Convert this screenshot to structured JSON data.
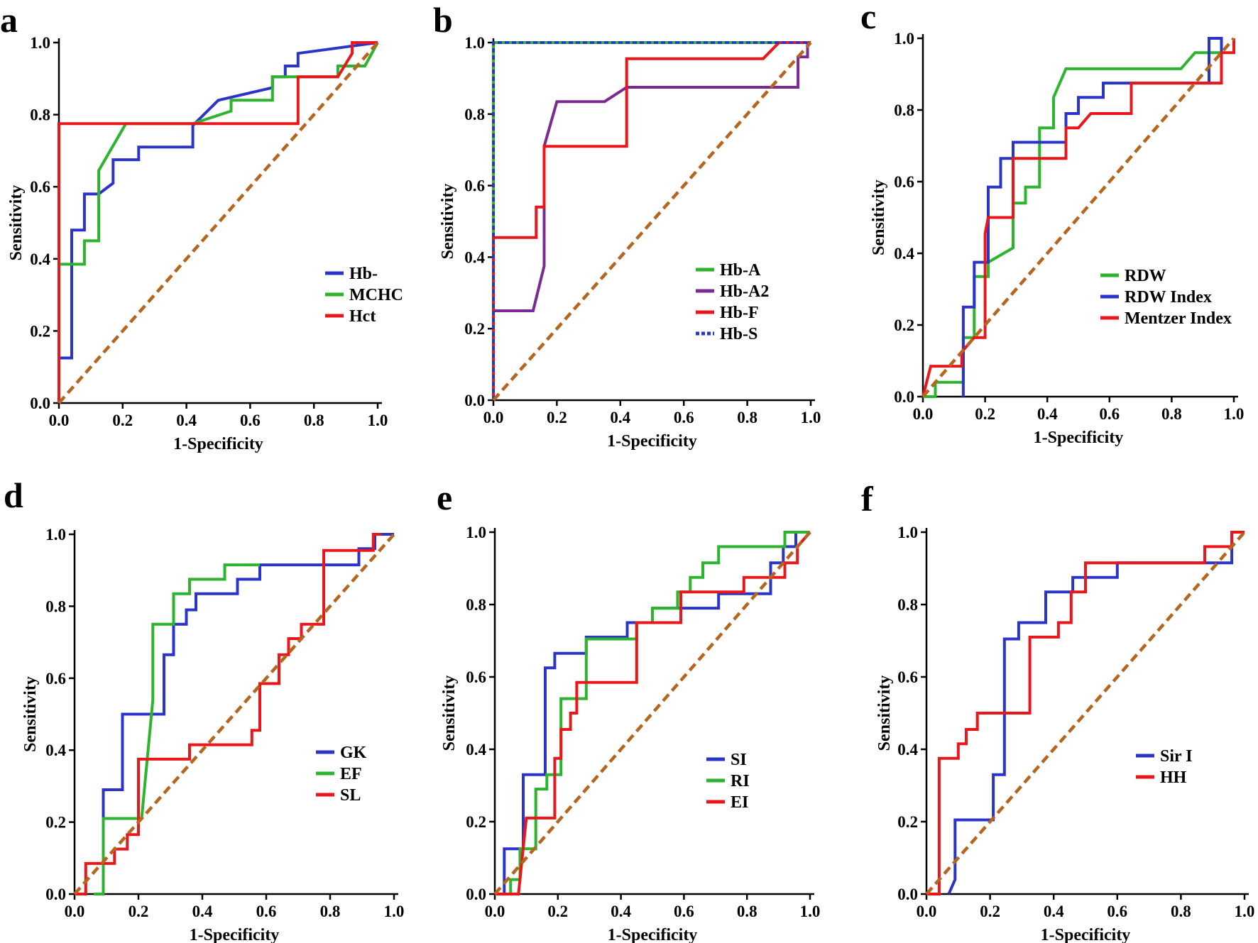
{
  "chart_data": [
    {
      "panel": "a",
      "type": "line",
      "xlabel": "1-Specificity",
      "ylabel": "Sensitivity",
      "xlim": [
        0,
        1
      ],
      "ylim": [
        0,
        1
      ],
      "ticks": [
        "0.0",
        "0.2",
        "0.4",
        "0.6",
        "0.8",
        "1.0"
      ],
      "reference_color": "#b5651d",
      "series": [
        {
          "name": "Hb-",
          "color": "#2b34c8",
          "dashed": false,
          "x": [
            0,
            0,
            0.04,
            0.04,
            0.08,
            0.08,
            0.125,
            0.125,
            0.17,
            0.17,
            0.25,
            0.25,
            0.42,
            0.42,
            0.5,
            0.5,
            0.67,
            0.67,
            0.71,
            0.71,
            0.75,
            0.75,
            1.0
          ],
          "y": [
            0,
            0.125,
            0.125,
            0.48,
            0.48,
            0.58,
            0.58,
            0.58,
            0.61,
            0.675,
            0.675,
            0.71,
            0.71,
            0.77,
            0.84,
            0.84,
            0.875,
            0.905,
            0.905,
            0.935,
            0.935,
            0.97,
            1.0
          ]
        },
        {
          "name": "MCHC",
          "color": "#2db32d",
          "dashed": false,
          "x": [
            0,
            0,
            0.08,
            0.08,
            0.125,
            0.125,
            0.21,
            0.42,
            0.54,
            0.54,
            0.67,
            0.67,
            0.875,
            0.875,
            0.96,
            1.0
          ],
          "y": [
            0,
            0.385,
            0.385,
            0.45,
            0.45,
            0.645,
            0.775,
            0.775,
            0.81,
            0.84,
            0.84,
            0.905,
            0.905,
            0.935,
            0.935,
            1.0
          ]
        },
        {
          "name": "Hct",
          "color": "#e8171c",
          "dashed": false,
          "x": [
            0,
            0,
            0.75,
            0.75,
            0.875,
            0.92,
            0.92,
            1.0
          ],
          "y": [
            0,
            0.775,
            0.775,
            0.905,
            0.905,
            0.97,
            1.0,
            1.0
          ]
        }
      ]
    },
    {
      "panel": "b",
      "type": "line",
      "xlabel": "1-Specificity",
      "ylabel": "Sensitivity",
      "xlim": [
        0,
        1
      ],
      "ylim": [
        0,
        1
      ],
      "ticks": [
        "0.0",
        "0.2",
        "0.4",
        "0.6",
        "0.8",
        "1.0"
      ],
      "reference_color": "#b5651d",
      "series": [
        {
          "name": "Hb-A",
          "color": "#2db32d",
          "dashed": false,
          "x": [
            0,
            0,
            1.0
          ],
          "y": [
            0,
            1.0,
            1.0
          ]
        },
        {
          "name": "Hb-A2",
          "color": "#7b2a91",
          "dashed": false,
          "x": [
            0,
            0,
            0.125,
            0.125,
            0.16,
            0.16,
            0.2,
            0.2,
            0.35,
            0.42,
            0.96,
            0.96,
            0.99,
            0.99
          ],
          "y": [
            0,
            0.25,
            0.25,
            0.25,
            0.375,
            0.71,
            0.835,
            0.835,
            0.835,
            0.875,
            0.875,
            0.96,
            0.96,
            1.0
          ]
        },
        {
          "name": "Hb-F",
          "color": "#e8171c",
          "dashed": false,
          "x": [
            0,
            0,
            0.135,
            0.135,
            0.16,
            0.16,
            0.42,
            0.42,
            0.85,
            0.9,
            0.9,
            1.0
          ],
          "y": [
            0,
            0.455,
            0.455,
            0.54,
            0.54,
            0.71,
            0.71,
            0.955,
            0.955,
            1.0,
            1.0,
            1.0
          ]
        },
        {
          "name": "Hb-S",
          "color": "#2b34c8",
          "dashed": true,
          "x": [
            0,
            0,
            1.0
          ],
          "y": [
            0,
            1.0,
            1.0
          ]
        }
      ]
    },
    {
      "panel": "c",
      "type": "line",
      "xlabel": "1-Specificity",
      "ylabel": "Sensitivity",
      "xlim": [
        0,
        1
      ],
      "ylim": [
        0,
        1
      ],
      "ticks": [
        "0.0",
        "0.2",
        "0.4",
        "0.6",
        "0.8",
        "1.0"
      ],
      "reference_color": "#b5651d",
      "series": [
        {
          "name": "RDW",
          "color": "#2db32d",
          "dashed": false,
          "x": [
            0,
            0.04,
            0.04,
            0.13,
            0.13,
            0.165,
            0.165,
            0.21,
            0.21,
            0.29,
            0.29,
            0.33,
            0.33,
            0.375,
            0.375,
            0.42,
            0.42,
            0.46,
            0.83,
            0.875,
            0.875,
            0.96,
            0.96
          ],
          "y": [
            0,
            0,
            0.04,
            0.04,
            0.165,
            0.165,
            0.335,
            0.335,
            0.375,
            0.415,
            0.54,
            0.54,
            0.585,
            0.585,
            0.75,
            0.75,
            0.835,
            0.915,
            0.915,
            0.96,
            0.96,
            0.96,
            1.0
          ]
        },
        {
          "name": "RDW Index",
          "color": "#2b34c8",
          "dashed": false,
          "x": [
            0.13,
            0.13,
            0.165,
            0.165,
            0.21,
            0.21,
            0.25,
            0.25,
            0.29,
            0.29,
            0.46,
            0.46,
            0.5,
            0.5,
            0.58,
            0.58,
            0.67,
            0.92,
            0.92,
            0.96,
            0.96
          ],
          "y": [
            0,
            0.25,
            0.25,
            0.375,
            0.375,
            0.585,
            0.585,
            0.665,
            0.665,
            0.71,
            0.71,
            0.79,
            0.79,
            0.835,
            0.835,
            0.875,
            0.875,
            0.875,
            1.0,
            1.0,
            0.96
          ]
        },
        {
          "name": "Mentzer Index",
          "color": "#e8171c",
          "dashed": false,
          "x": [
            0,
            0.025,
            0.125,
            0.125,
            0.165,
            0.165,
            0.2,
            0.2,
            0.21,
            0.25,
            0.29,
            0.29,
            0.46,
            0.46,
            0.5,
            0.54,
            0.67,
            0.67,
            0.96,
            0.96,
            1.0,
            1.0
          ],
          "y": [
            0,
            0.085,
            0.085,
            0.125,
            0.165,
            0.165,
            0.165,
            0.455,
            0.5,
            0.5,
            0.5,
            0.665,
            0.665,
            0.75,
            0.75,
            0.79,
            0.79,
            0.875,
            0.875,
            0.96,
            0.96,
            1.0
          ]
        }
      ]
    },
    {
      "panel": "d",
      "type": "line",
      "xlabel": "1-Specificity",
      "ylabel": "Sensitivity",
      "xlim": [
        0,
        1
      ],
      "ylim": [
        0,
        1
      ],
      "ticks": [
        "0.0",
        "0.2",
        "0.4",
        "0.6",
        "0.8",
        "1.0"
      ],
      "reference_color": "#b5651d",
      "series": [
        {
          "name": "GK",
          "color": "#2b34c8",
          "dashed": false,
          "x": [
            0.09,
            0.09,
            0.15,
            0.15,
            0.28,
            0.28,
            0.31,
            0.31,
            0.35,
            0.35,
            0.38,
            0.38,
            0.51,
            0.51,
            0.58,
            0.58,
            0.89,
            0.89,
            0.94,
            0.94,
            1.0
          ],
          "y": [
            0,
            0.29,
            0.29,
            0.5,
            0.5,
            0.665,
            0.665,
            0.75,
            0.75,
            0.79,
            0.79,
            0.835,
            0.835,
            0.875,
            0.875,
            0.915,
            0.915,
            0.96,
            0.96,
            1.0,
            1.0
          ]
        },
        {
          "name": "EF",
          "color": "#2db32d",
          "dashed": false,
          "x": [
            0.06,
            0.09,
            0.09,
            0.21,
            0.21,
            0.245,
            0.245,
            0.31,
            0.31,
            0.36,
            0.36,
            0.47,
            0.47,
            0.58
          ],
          "y": [
            0,
            0,
            0.21,
            0.21,
            0.21,
            0.54,
            0.75,
            0.75,
            0.835,
            0.835,
            0.875,
            0.875,
            0.915,
            0.915
          ]
        },
        {
          "name": "SL",
          "color": "#e8171c",
          "dashed": false,
          "x": [
            0,
            0.035,
            0.035,
            0.125,
            0.125,
            0.165,
            0.165,
            0.2,
            0.2,
            0.36,
            0.36,
            0.555,
            0.555,
            0.58,
            0.58,
            0.64,
            0.64,
            0.67,
            0.67,
            0.71,
            0.71,
            0.78,
            0.78,
            0.935,
            0.935,
            0.96
          ],
          "y": [
            0,
            0,
            0.085,
            0.085,
            0.125,
            0.125,
            0.165,
            0.165,
            0.375,
            0.375,
            0.415,
            0.415,
            0.455,
            0.455,
            0.585,
            0.585,
            0.665,
            0.665,
            0.71,
            0.71,
            0.75,
            0.75,
            0.955,
            0.955,
            1.0,
            1.0
          ]
        }
      ]
    },
    {
      "panel": "e",
      "type": "line",
      "xlabel": "1-Specificity",
      "ylabel": "Sensitivity",
      "xlim": [
        0,
        1
      ],
      "ylim": [
        0,
        1
      ],
      "ticks": [
        "0.0",
        "0.2",
        "0.4",
        "0.6",
        "0.8",
        "1.0"
      ],
      "reference_color": "#b5651d",
      "series": [
        {
          "name": "SI",
          "color": "#2b34c8",
          "dashed": false,
          "x": [
            0,
            0.03,
            0.03,
            0.09,
            0.09,
            0.16,
            0.16,
            0.19,
            0.19,
            0.29,
            0.29,
            0.42,
            0.42,
            0.5,
            0.5,
            0.54,
            0.54,
            0.71,
            0.71,
            0.875,
            0.875,
            0.915,
            0.915,
            0.955,
            0.955,
            1.0
          ],
          "y": [
            0,
            0,
            0.125,
            0.125,
            0.33,
            0.33,
            0.625,
            0.625,
            0.665,
            0.665,
            0.71,
            0.71,
            0.75,
            0.75,
            0.79,
            0.79,
            0.79,
            0.79,
            0.83,
            0.83,
            0.915,
            0.915,
            0.96,
            0.96,
            1.0,
            1.0
          ]
        },
        {
          "name": "RI",
          "color": "#2db32d",
          "dashed": false,
          "x": [
            0.03,
            0.05,
            0.05,
            0.08,
            0.08,
            0.13,
            0.13,
            0.165,
            0.165,
            0.21,
            0.21,
            0.25,
            0.25,
            0.29,
            0.29,
            0.45,
            0.45,
            0.5,
            0.5,
            0.58,
            0.58,
            0.62,
            0.62,
            0.66,
            0.66,
            0.71,
            0.71,
            0.92,
            0.92,
            1.0
          ],
          "y": [
            0,
            0,
            0.04,
            0.04,
            0.125,
            0.125,
            0.29,
            0.29,
            0.33,
            0.33,
            0.54,
            0.54,
            0.54,
            0.54,
            0.705,
            0.705,
            0.75,
            0.75,
            0.79,
            0.79,
            0.835,
            0.835,
            0.875,
            0.875,
            0.915,
            0.915,
            0.96,
            0.96,
            1.0,
            1.0
          ]
        },
        {
          "name": "EI",
          "color": "#e8171c",
          "dashed": false,
          "x": [
            0,
            0.075,
            0.1,
            0.1,
            0.19,
            0.19,
            0.21,
            0.21,
            0.24,
            0.24,
            0.26,
            0.26,
            0.29,
            0.29,
            0.45,
            0.45,
            0.54,
            0.59,
            0.59,
            0.79,
            0.79,
            0.92,
            0.92,
            0.96,
            0.96,
            1.0
          ],
          "y": [
            0,
            0,
            0.21,
            0.21,
            0.21,
            0.375,
            0.375,
            0.455,
            0.455,
            0.5,
            0.5,
            0.585,
            0.585,
            0.585,
            0.585,
            0.75,
            0.75,
            0.75,
            0.835,
            0.835,
            0.875,
            0.875,
            0.915,
            0.915,
            0.96,
            1.0
          ]
        }
      ]
    },
    {
      "panel": "f",
      "type": "line",
      "xlabel": "1-Specificity",
      "ylabel": "Sensitivity",
      "xlim": [
        0,
        1
      ],
      "ylim": [
        0,
        1
      ],
      "ticks": [
        "0.0",
        "0.2",
        "0.4",
        "0.6",
        "0.8",
        "1.0"
      ],
      "reference_color": "#b5651d",
      "series": [
        {
          "name": "Sir I",
          "color": "#2b34c8",
          "dashed": false,
          "x": [
            0.07,
            0.09,
            0.09,
            0.21,
            0.21,
            0.245,
            0.245,
            0.29,
            0.29,
            0.375,
            0.375,
            0.415,
            0.415,
            0.46,
            0.46,
            0.6,
            0.6,
            0.96,
            0.96,
            1.0
          ],
          "y": [
            0,
            0.04,
            0.205,
            0.205,
            0.33,
            0.33,
            0.705,
            0.705,
            0.75,
            0.75,
            0.835,
            0.835,
            0.835,
            0.835,
            0.875,
            0.875,
            0.915,
            0.915,
            1.0,
            1.0
          ]
        },
        {
          "name": "HH",
          "color": "#e8171c",
          "dashed": false,
          "x": [
            0,
            0.04,
            0.04,
            0.1,
            0.1,
            0.125,
            0.125,
            0.16,
            0.16,
            0.21,
            0.21,
            0.325,
            0.325,
            0.415,
            0.415,
            0.455,
            0.455,
            0.5,
            0.5,
            0.875,
            0.875,
            0.96,
            0.96,
            1.0
          ],
          "y": [
            0,
            0,
            0.375,
            0.375,
            0.415,
            0.415,
            0.455,
            0.455,
            0.5,
            0.5,
            0.5,
            0.5,
            0.71,
            0.71,
            0.75,
            0.75,
            0.835,
            0.835,
            0.915,
            0.915,
            0.96,
            0.96,
            1.0,
            1.0
          ]
        }
      ]
    }
  ]
}
